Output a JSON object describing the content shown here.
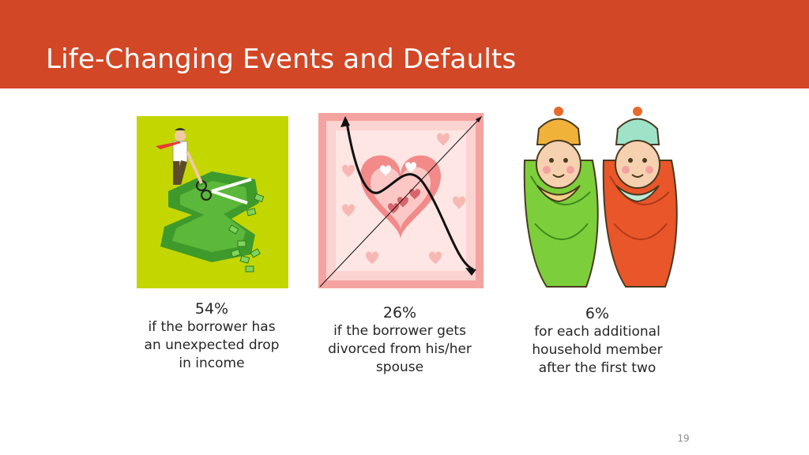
{
  "slide": {
    "title": "Life-Changing Events and Defaults",
    "number": "19",
    "accent_color": "#d24726"
  },
  "events": [
    {
      "percent": "54%",
      "line1": "if the borrower has",
      "line2": "an unexpected drop",
      "line3": "in income",
      "icon": "businessman-cutting-money-icon"
    },
    {
      "percent": "26%",
      "line1": "if the borrower gets",
      "line2": "divorced from his/her",
      "line3": "spouse",
      "icon": "heart-trend-icon"
    },
    {
      "percent": "6%",
      "line1": "for each additional",
      "line2": "household member",
      "line3": "after the first two",
      "icon": "twin-babies-icon"
    }
  ]
}
